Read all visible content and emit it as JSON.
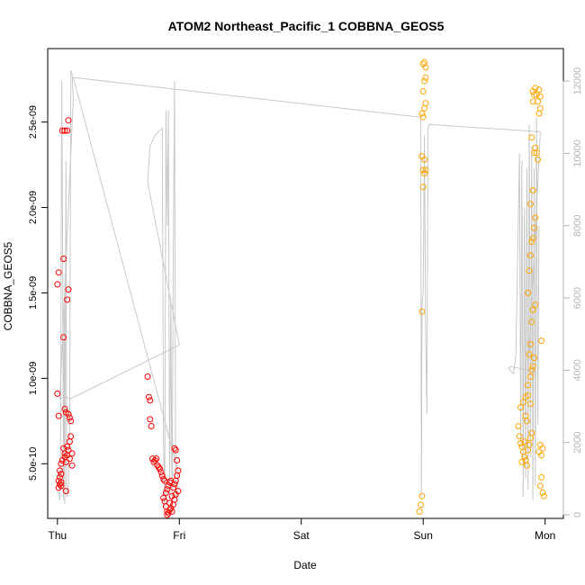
{
  "chart_data": {
    "type": "scatter",
    "title": "ATOM2 Northeast_Pacific_1 COBBNA_GEOS5",
    "xlabel": "Date",
    "ylabel": "COBBNA_GEOS5",
    "xlim": [
      -0.08,
      4.15
    ],
    "ylim": [
      1.8e-10,
      2.93e-09
    ],
    "y2lim": [
      -100,
      12900
    ],
    "x_ticks": [
      {
        "value": 0,
        "label": "Thu"
      },
      {
        "value": 1,
        "label": "Fri"
      },
      {
        "value": 2,
        "label": "Sat"
      },
      {
        "value": 3,
        "label": "Sun"
      },
      {
        "value": 4,
        "label": "Mon"
      }
    ],
    "y_ticks": [
      {
        "value": 5e-10,
        "label": "5.0e-10"
      },
      {
        "value": 1e-09,
        "label": "1.0e-09"
      },
      {
        "value": 1.5e-09,
        "label": "1.5e-09"
      },
      {
        "value": 2e-09,
        "label": "2.0e-09"
      },
      {
        "value": 2.5e-09,
        "label": "2.5e-09"
      }
    ],
    "y2_ticks": [
      {
        "value": 0,
        "label": "0"
      },
      {
        "value": 2000,
        "label": "2000"
      },
      {
        "value": 4000,
        "label": "4000"
      },
      {
        "value": 6000,
        "label": "6000"
      },
      {
        "value": 8000,
        "label": "8000"
      },
      {
        "value": 10000,
        "label": "10000"
      },
      {
        "value": 12000,
        "label": "12000"
      }
    ],
    "colors": {
      "series_red": "#ff0000",
      "series_orange": "#ffa500",
      "altitude_line": "#c8c8c8",
      "axis": "#000000",
      "right_axis": "#b4b4b4"
    },
    "series": [
      {
        "color": "#ff0000",
        "points": [
          [
            0.0,
            9.1e-10
          ],
          [
            0.01,
            7.8e-10
          ],
          [
            0.01,
            1.62e-09
          ],
          [
            0.0,
            1.55e-09
          ],
          [
            0.01,
            4e-10
          ],
          [
            0.02,
            3.8e-10
          ],
          [
            0.02,
            4.2e-10
          ],
          [
            0.03,
            4.4e-10
          ],
          [
            0.01,
            3.6e-10
          ],
          [
            0.03,
            3.9e-10
          ],
          [
            0.02,
            4.6e-10
          ],
          [
            0.03,
            5e-10
          ],
          [
            0.03,
            3.7e-10
          ],
          [
            0.04,
            5.2e-10
          ],
          [
            0.05,
            1.7e-09
          ],
          [
            0.05,
            1.24e-09
          ],
          [
            0.04,
            2.45e-09
          ],
          [
            0.06,
            2.45e-09
          ],
          [
            0.08,
            2.45e-09
          ],
          [
            0.09,
            2.51e-09
          ],
          [
            0.06,
            8.2e-10
          ],
          [
            0.07,
            8e-10
          ],
          [
            0.09,
            7.9e-10
          ],
          [
            0.1,
            7.7e-10
          ],
          [
            0.11,
            7.5e-10
          ],
          [
            0.09,
            1.52e-09
          ],
          [
            0.08,
            1.46e-09
          ],
          [
            0.05,
            5.9e-10
          ],
          [
            0.06,
            5.4e-10
          ],
          [
            0.07,
            5.1e-10
          ],
          [
            0.07,
            3.4e-10
          ],
          [
            0.08,
            5.5e-10
          ],
          [
            0.09,
            5.8e-10
          ],
          [
            0.1,
            6.3e-10
          ],
          [
            0.11,
            6.6e-10
          ],
          [
            0.12,
            5.6e-10
          ],
          [
            0.12,
            4.9e-10
          ],
          [
            0.08,
            6e-10
          ],
          [
            0.1,
            5.3e-10
          ],
          [
            0.06,
            5.6e-10
          ],
          [
            0.74,
            1.01e-09
          ],
          [
            0.75,
            8.9e-10
          ],
          [
            0.76,
            8.7e-10
          ],
          [
            0.76,
            7.6e-10
          ],
          [
            0.77,
            7.2e-10
          ],
          [
            0.78,
            5.3e-10
          ],
          [
            0.79,
            5.1e-10
          ],
          [
            0.8,
            5.2e-10
          ],
          [
            0.81,
            5.3e-10
          ],
          [
            0.82,
            4.9e-10
          ],
          [
            0.83,
            4.8e-10
          ],
          [
            0.84,
            4.7e-10
          ],
          [
            0.85,
            4.5e-10
          ],
          [
            0.86,
            4.3e-10
          ],
          [
            0.87,
            4.1e-10
          ],
          [
            0.88,
            4e-10
          ],
          [
            0.87,
            3e-10
          ],
          [
            0.88,
            2.8e-10
          ],
          [
            0.89,
            2.5e-10
          ],
          [
            0.9,
            2.2e-10
          ],
          [
            0.91,
            2.1e-10
          ],
          [
            0.92,
            2.3e-10
          ],
          [
            0.93,
            2.4e-10
          ],
          [
            0.94,
            2.2e-10
          ],
          [
            0.95,
            2.6e-10
          ],
          [
            0.96,
            2.9e-10
          ],
          [
            0.89,
            3.3e-10
          ],
          [
            0.9,
            3.5e-10
          ],
          [
            0.91,
            3.7e-10
          ],
          [
            0.92,
            3.9e-10
          ],
          [
            0.93,
            4e-10
          ],
          [
            0.95,
            3.6e-10
          ],
          [
            0.96,
            3.8e-10
          ],
          [
            0.97,
            4e-10
          ],
          [
            0.98,
            4.3e-10
          ],
          [
            0.99,
            4.6e-10
          ],
          [
            0.98,
            5.2e-10
          ],
          [
            0.97,
            5.8e-10
          ],
          [
            0.96,
            5.9e-10
          ],
          [
            0.94,
            3.1e-10
          ],
          [
            0.92,
            2.7e-10
          ],
          [
            0.97,
            3.2e-10
          ],
          [
            0.99,
            3.4e-10
          ],
          [
            0.9,
            2e-10
          ]
        ]
      },
      {
        "color": "#ffa500",
        "points": [
          [
            2.97,
            2.2e-10
          ],
          [
            2.98,
            2.6e-10
          ],
          [
            2.99,
            3.1e-10
          ],
          [
            2.99,
            1.39e-09
          ],
          [
            3.0,
            2.12e-09
          ],
          [
            3.0,
            2.22e-09
          ],
          [
            3.01,
            2.2e-09
          ],
          [
            3.02,
            2.22e-09
          ],
          [
            3.01,
            2.28e-09
          ],
          [
            2.99,
            2.3e-09
          ],
          [
            3.0,
            2.53e-09
          ],
          [
            3.01,
            2.58e-09
          ],
          [
            3.02,
            2.61e-09
          ],
          [
            2.99,
            2.55e-09
          ],
          [
            3.0,
            2.68e-09
          ],
          [
            3.01,
            2.74e-09
          ],
          [
            3.02,
            2.76e-09
          ],
          [
            3.0,
            2.84e-09
          ],
          [
            3.01,
            2.85e-09
          ],
          [
            3.02,
            2.82e-09
          ],
          [
            3.78,
            7.2e-10
          ],
          [
            3.79,
            6.6e-10
          ],
          [
            3.8,
            6.2e-10
          ],
          [
            3.81,
            6e-10
          ],
          [
            3.82,
            5.7e-10
          ],
          [
            3.83,
            5.4e-10
          ],
          [
            3.84,
            5.2e-10
          ],
          [
            3.85,
            4.9e-10
          ],
          [
            3.86,
            5.8e-10
          ],
          [
            3.87,
            6.1e-10
          ],
          [
            3.88,
            6.5e-10
          ],
          [
            3.89,
            6.8e-10
          ],
          [
            3.8,
            8.3e-10
          ],
          [
            3.82,
            8.6e-10
          ],
          [
            3.84,
            8.9e-10
          ],
          [
            3.86,
            9.6e-10
          ],
          [
            3.88,
            1.01e-09
          ],
          [
            3.89,
            1.05e-09
          ],
          [
            3.9,
            1.07e-09
          ],
          [
            3.91,
            1.12e-09
          ],
          [
            3.87,
            1.14e-09
          ],
          [
            3.88,
            1.2e-09
          ],
          [
            3.89,
            1.33e-09
          ],
          [
            3.9,
            1.4e-09
          ],
          [
            3.92,
            1.43e-09
          ],
          [
            3.86,
            1.5e-09
          ],
          [
            3.87,
            1.63e-09
          ],
          [
            3.88,
            1.72e-09
          ],
          [
            3.89,
            1.8e-09
          ],
          [
            3.9,
            1.82e-09
          ],
          [
            3.91,
            1.88e-09
          ],
          [
            3.92,
            1.94e-09
          ],
          [
            3.88,
            2.02e-09
          ],
          [
            3.9,
            2.1e-09
          ],
          [
            3.91,
            2.32e-09
          ],
          [
            3.92,
            2.35e-09
          ],
          [
            3.89,
            2.41e-09
          ],
          [
            3.93,
            2.32e-09
          ],
          [
            3.94,
            2.28e-09
          ],
          [
            3.95,
            2.55e-09
          ],
          [
            3.96,
            2.58e-09
          ],
          [
            3.9,
            2.62e-09
          ],
          [
            3.91,
            2.66e-09
          ],
          [
            3.92,
            2.7e-09
          ],
          [
            3.93,
            2.66e-09
          ],
          [
            3.94,
            2.62e-09
          ],
          [
            3.95,
            2.69e-09
          ],
          [
            3.96,
            2.65e-09
          ],
          [
            3.9,
            2.68e-09
          ],
          [
            3.97,
            1.22e-09
          ],
          [
            3.95,
            5.7e-10
          ],
          [
            3.96,
            6.1e-10
          ],
          [
            3.97,
            5.5e-10
          ],
          [
            3.98,
            5.9e-10
          ],
          [
            3.97,
            4.2e-10
          ],
          [
            3.98,
            3.3e-10
          ],
          [
            3.99,
            3.1e-10
          ],
          [
            3.96,
            3.7e-10
          ],
          [
            3.85,
            7.5e-10
          ],
          [
            3.83,
            6.3e-10
          ],
          [
            3.81,
            5.1e-10
          ],
          [
            3.84,
            7.8e-10
          ],
          [
            3.86,
            9e-10
          ],
          [
            3.88,
            8.5e-10
          ]
        ]
      }
    ],
    "altitude": [
      [
        0.0,
        700
      ],
      [
        0.01,
        600
      ],
      [
        0.02,
        400
      ],
      [
        0.025,
        1500
      ],
      [
        0.03,
        6500
      ],
      [
        0.035,
        12000
      ],
      [
        0.04,
        9000
      ],
      [
        0.05,
        400
      ],
      [
        0.055,
        6000
      ],
      [
        0.06,
        300
      ],
      [
        0.065,
        5000
      ],
      [
        0.07,
        9800
      ],
      [
        0.075,
        800
      ],
      [
        0.08,
        500
      ],
      [
        0.09,
        800
      ],
      [
        0.1,
        2500
      ],
      [
        0.11,
        12300
      ],
      [
        0.12,
        12200
      ],
      [
        0.13,
        11500
      ],
      [
        0.02,
        3200
      ],
      [
        0.06,
        3300
      ],
      [
        0.1,
        3200
      ],
      [
        1.0,
        4700
      ],
      [
        0.74,
        9200
      ],
      [
        0.76,
        10200
      ],
      [
        0.8,
        10500
      ],
      [
        0.86,
        10700
      ],
      [
        0.87,
        2000
      ],
      [
        0.88,
        200
      ],
      [
        0.89,
        11200
      ],
      [
        0.9,
        8000
      ],
      [
        0.91,
        11200
      ],
      [
        0.92,
        400
      ],
      [
        0.93,
        6000
      ],
      [
        0.94,
        200
      ],
      [
        0.95,
        7000
      ],
      [
        0.96,
        12000
      ],
      [
        0.97,
        900
      ],
      [
        0.98,
        400
      ],
      [
        0.99,
        1200
      ],
      [
        0.13,
        12100
      ],
      [
        2.98,
        11000
      ],
      [
        2.985,
        500
      ],
      [
        2.99,
        5800
      ],
      [
        3.0,
        6200
      ],
      [
        3.01,
        10500
      ],
      [
        3.02,
        5200
      ],
      [
        3.03,
        2800
      ],
      [
        3.04,
        10700
      ],
      [
        3.05,
        10800
      ],
      [
        3.96,
        10600
      ],
      [
        3.95,
        9800
      ],
      [
        3.86,
        4000
      ],
      [
        3.72,
        4100
      ],
      [
        3.7,
        4050
      ],
      [
        3.74,
        3900
      ],
      [
        3.76,
        4400
      ],
      [
        3.79,
        10000
      ],
      [
        3.8,
        2000
      ],
      [
        3.81,
        9800
      ],
      [
        3.82,
        500
      ],
      [
        3.83,
        8500
      ],
      [
        3.84,
        1000
      ],
      [
        3.85,
        9600
      ],
      [
        3.86,
        700
      ],
      [
        3.87,
        10800
      ],
      [
        3.88,
        1600
      ],
      [
        3.89,
        10200
      ],
      [
        3.9,
        400
      ],
      [
        3.91,
        9600
      ],
      [
        3.92,
        800
      ],
      [
        3.93,
        11000
      ],
      [
        3.94,
        2500
      ],
      [
        3.95,
        8000
      ]
    ]
  }
}
